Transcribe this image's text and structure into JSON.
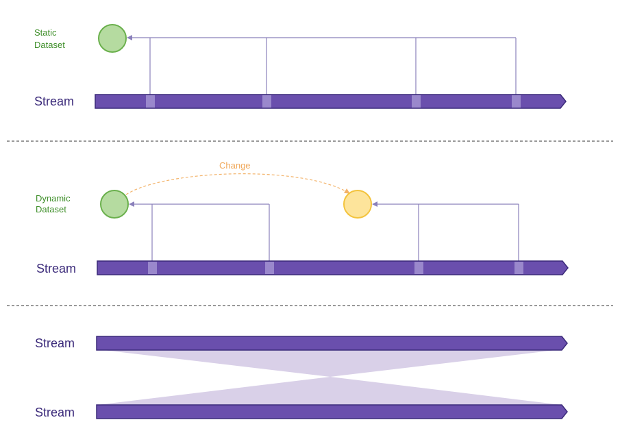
{
  "panel_static": {
    "dataset_label": [
      "Static",
      "Dataset"
    ],
    "stream_label": "Stream"
  },
  "panel_dynamic": {
    "dataset_label": [
      "Dynamic",
      "Dataset"
    ],
    "change_label": "Change",
    "stream_label": "Stream"
  },
  "panel_join": {
    "stream_top_label": "Stream",
    "stream_bottom_label": "Stream"
  },
  "colors": {
    "stream_fill": "#6a4fad",
    "stream_stroke": "#3b2a7a",
    "marker": "#9a88cc",
    "connector": "#8a80bb",
    "static_circle_fill": "#b5dba0",
    "static_circle_stroke": "#6ab04c",
    "dynamic_circle_fill": "#fde49b",
    "dynamic_circle_stroke": "#f3c33d",
    "change_arc": "#f3b36a",
    "join_fill": "#d9d0e8",
    "divider": "#333333"
  }
}
